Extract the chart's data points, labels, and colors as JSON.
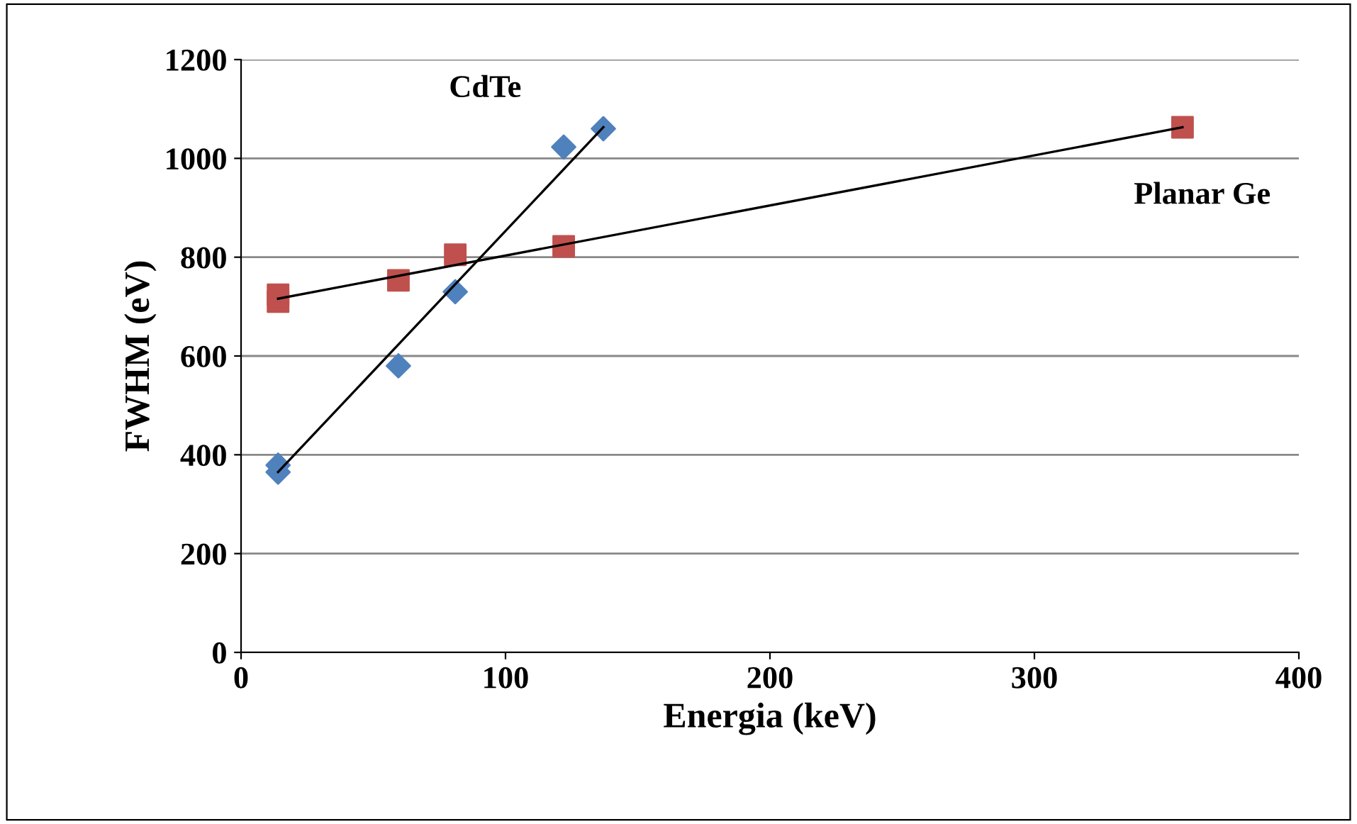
{
  "chart_data": {
    "type": "scatter",
    "xlabel": "Energia (keV)",
    "ylabel": "FWHM (eV)",
    "xlim": [
      0,
      400
    ],
    "xticks": [
      0,
      100,
      200,
      300,
      400
    ],
    "ylim": [
      0,
      1200
    ],
    "yticks": [
      0,
      200,
      400,
      600,
      800,
      1000,
      1200
    ],
    "grid": "y",
    "series": [
      {
        "name": "CdTe",
        "color": "#4f81bd",
        "marker": "diamond",
        "x": [
          14,
          14,
          59.5,
          81,
          122,
          137
        ],
        "values": [
          379,
          365,
          580,
          730,
          1023,
          1060
        ]
      },
      {
        "name": "Planar Ge",
        "color": "#c0504d",
        "marker": "square",
        "x": [
          14,
          14,
          59.5,
          81,
          122,
          356
        ],
        "values": [
          724,
          710,
          753,
          805,
          822,
          1063
        ]
      },
      {
        "type": "line",
        "color": "#000000",
        "x": [
          14,
          137
        ],
        "values": [
          365,
          1063
        ],
        "marker": "none"
      },
      {
        "type": "line",
        "color": "#000000",
        "x": [
          14,
          356
        ],
        "values": [
          716,
          1063
        ],
        "marker": "none"
      }
    ]
  }
}
